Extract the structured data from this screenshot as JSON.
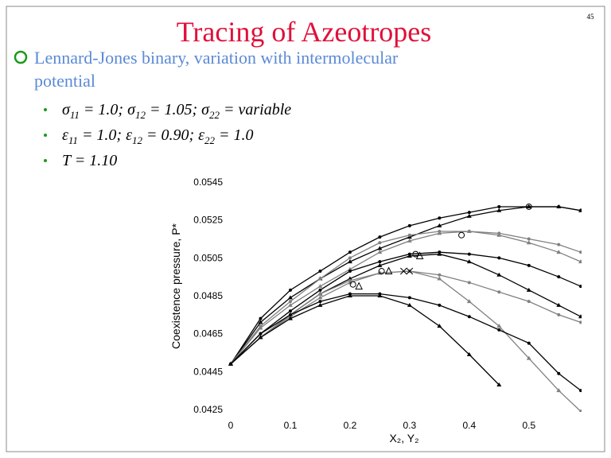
{
  "slide": {
    "number": "45",
    "title": "Tracing of Azeotropes",
    "bullet": [
      "Lennard-Jones binary, variation with intermolecular",
      "potential"
    ],
    "subbullets": [
      [
        "σ",
        "11",
        " = 1.0; σ",
        "12",
        " = 1.05; σ",
        "22",
        " = variable"
      ],
      [
        "ε",
        "11",
        " = 1.0; ε",
        "12",
        " = 0.90; ε",
        "22",
        " = 1.0"
      ],
      [
        "T = 1.10"
      ]
    ]
  },
  "chart_data": {
    "type": "line",
    "xlabel": "X₂, Y₂",
    "ylabel": "Coexistence pressure, P*",
    "xlim": [
      0,
      0.587
    ],
    "ylim": [
      0.0425,
      0.0545
    ],
    "xticks": [
      0,
      0.1,
      0.2,
      0.3,
      0.4,
      0.5
    ],
    "yticks": [
      0.0425,
      0.0445,
      0.0465,
      0.0485,
      0.0505,
      0.0525,
      0.0545
    ],
    "x": [
      0,
      0.05,
      0.1,
      0.15,
      0.2,
      0.25,
      0.3,
      0.35,
      0.4,
      0.45,
      0.5,
      0.55,
      0.587
    ],
    "series": [
      {
        "color": "#000000",
        "marker": "circle",
        "values": [
          0.0449,
          0.0473,
          0.0488,
          0.0498,
          0.0508,
          0.0516,
          0.0522,
          0.0526,
          0.0529,
          0.0532,
          0.0532,
          0.0532,
          0.053
        ]
      },
      {
        "color": "#000000",
        "marker": "triangle",
        "values": [
          0.0449,
          0.0471,
          0.0484,
          0.0494,
          0.0503,
          0.051,
          0.0516,
          0.0522,
          0.0527,
          0.053,
          0.0532,
          0.0532,
          0.053
        ]
      },
      {
        "color": "#808080",
        "marker": "circle",
        "values": [
          0.0449,
          0.0469,
          0.0482,
          0.0494,
          0.0505,
          0.0513,
          0.0517,
          0.0519,
          0.0519,
          0.0518,
          0.0515,
          0.0512,
          0.0508
        ]
      },
      {
        "color": "#808080",
        "marker": "triangle",
        "values": [
          0.0449,
          0.0468,
          0.048,
          0.049,
          0.0499,
          0.0508,
          0.0514,
          0.0518,
          0.0519,
          0.0517,
          0.0513,
          0.0508,
          0.0503
        ]
      },
      {
        "color": "#000000",
        "marker": "circle",
        "values": [
          0.0449,
          0.0465,
          0.0477,
          0.0488,
          0.0498,
          0.0503,
          0.0507,
          0.0508,
          0.0507,
          0.0505,
          0.0501,
          0.0495,
          0.049
        ]
      },
      {
        "color": "#000000",
        "marker": "triangle",
        "values": [
          0.0449,
          0.0463,
          0.0475,
          0.0486,
          0.0494,
          0.0501,
          0.0506,
          0.0507,
          0.0503,
          0.0496,
          0.0488,
          0.048,
          0.0474
        ]
      },
      {
        "color": "#808080",
        "marker": "circle",
        "values": [
          0.0449,
          0.0463,
          0.0475,
          0.0486,
          0.0493,
          0.0497,
          0.0498,
          0.0496,
          0.0492,
          0.0487,
          0.0482,
          0.0475,
          0.0471
        ]
      },
      {
        "color": "#808080",
        "marker": "triangle",
        "values": [
          0.0449,
          0.0463,
          0.0474,
          0.0484,
          0.0492,
          0.0497,
          0.0498,
          0.0494,
          0.0482,
          0.0469,
          0.0452,
          0.0435,
          0.0424
        ]
      },
      {
        "color": "#000000",
        "marker": "circle",
        "values": [
          0.0449,
          0.0465,
          0.0475,
          0.0482,
          0.0486,
          0.0486,
          0.0484,
          0.048,
          0.0474,
          0.0467,
          0.046,
          0.0444,
          0.0435
        ]
      },
      {
        "color": "#000000",
        "marker": "triangle",
        "values": [
          0.0449,
          0.0463,
          0.0473,
          0.048,
          0.0485,
          0.0485,
          0.048,
          0.0469,
          0.0454,
          0.0438,
          null,
          null,
          null
        ]
      }
    ],
    "points": [
      {
        "color": "#000000",
        "marker": "open-circle",
        "x": [
          0.5,
          0.387,
          0.31,
          0.253,
          0.205
        ],
        "values": [
          0.0532,
          0.0517,
          0.0507,
          0.0498,
          0.0491
        ]
      },
      {
        "color": "#000000",
        "marker": "open-triangle",
        "x": [
          0.317,
          0.265,
          0.215
        ],
        "values": [
          0.0506,
          0.0498,
          0.049
        ]
      },
      {
        "color": "#000000",
        "marker": "cross",
        "x": [
          0.29,
          0.3
        ],
        "values": [
          0.0498,
          0.0498
        ]
      }
    ]
  }
}
